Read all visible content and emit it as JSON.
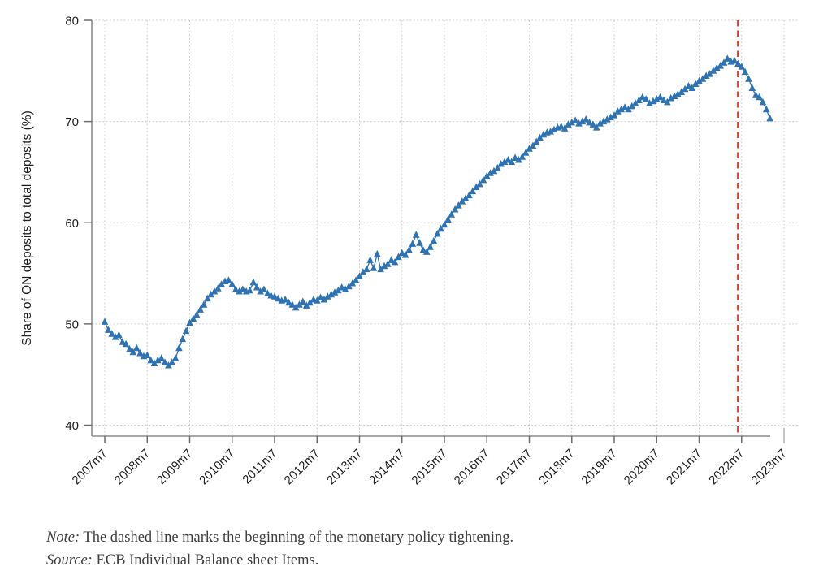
{
  "chart_data": {
    "type": "scatter",
    "marker": "triangle-up",
    "title": "",
    "xlabel": "",
    "ylabel": "Share of ON deposits to total deposits (%)",
    "ylim": [
      40,
      80
    ],
    "y_ticks": [
      40,
      50,
      60,
      70,
      80
    ],
    "x_start": "2007m7",
    "x_end": "2023m3",
    "x_frequency": "monthly",
    "x_tick_labels": [
      "2007m7",
      "2008m7",
      "2009m7",
      "2010m7",
      "2011m7",
      "2012m7",
      "2013m7",
      "2014m7",
      "2015m7",
      "2016m7",
      "2017m7",
      "2018m7",
      "2019m7",
      "2020m7",
      "2021m7",
      "2022m7",
      "2023m7"
    ],
    "grid": "dotted",
    "legend_position": "none",
    "series": [
      {
        "name": "Share of ON deposits to total deposits (%)",
        "color": "#2e73b3",
        "values": [
          50.2,
          49.4,
          49.0,
          48.7,
          48.9,
          48.2,
          48.0,
          47.5,
          47.2,
          47.6,
          47.1,
          46.8,
          46.9,
          46.4,
          46.1,
          46.4,
          46.6,
          46.2,
          45.9,
          46.2,
          46.6,
          47.6,
          48.5,
          49.3,
          50.1,
          50.5,
          50.9,
          51.4,
          51.9,
          52.5,
          52.9,
          53.2,
          53.5,
          53.9,
          54.2,
          54.3,
          53.9,
          53.4,
          53.2,
          53.4,
          53.2,
          53.3,
          54.1,
          53.6,
          53.2,
          53.4,
          53.0,
          52.8,
          52.7,
          52.5,
          52.3,
          52.4,
          52.1,
          51.9,
          51.6,
          51.9,
          52.2,
          51.8,
          52.1,
          52.4,
          52.3,
          52.6,
          52.4,
          52.7,
          52.9,
          53.1,
          53.3,
          53.6,
          53.4,
          53.7,
          54.0,
          54.3,
          54.7,
          55.1,
          55.4,
          56.3,
          55.5,
          56.9,
          55.4,
          55.7,
          55.9,
          56.3,
          56.1,
          56.6,
          57.0,
          56.8,
          57.3,
          57.9,
          58.8,
          58.0,
          57.3,
          57.1,
          57.6,
          58.2,
          58.9,
          59.4,
          59.8,
          60.3,
          60.8,
          61.3,
          61.7,
          62.1,
          62.4,
          62.7,
          63.1,
          63.5,
          63.8,
          64.2,
          64.6,
          64.9,
          65.1,
          65.4,
          65.8,
          66.0,
          66.2,
          66.0,
          66.4,
          66.2,
          66.5,
          66.9,
          67.3,
          67.6,
          68.0,
          68.4,
          68.7,
          68.9,
          69.0,
          69.2,
          69.4,
          69.5,
          69.3,
          69.7,
          69.9,
          70.1,
          69.8,
          70.0,
          70.2,
          69.9,
          69.7,
          69.4,
          69.8,
          70.0,
          70.2,
          70.4,
          70.6,
          71.0,
          71.2,
          71.4,
          71.2,
          71.5,
          71.8,
          72.1,
          72.4,
          72.2,
          71.8,
          72.0,
          72.2,
          72.4,
          72.1,
          71.9,
          72.3,
          72.5,
          72.7,
          72.9,
          73.2,
          73.5,
          73.3,
          73.7,
          74.0,
          74.2,
          74.5,
          74.7,
          75.0,
          75.3,
          75.5,
          75.8,
          76.2,
          75.9,
          76.0,
          75.7,
          75.4,
          74.9,
          74.2,
          73.3,
          72.6,
          72.4,
          71.9,
          71.2,
          70.3
        ]
      }
    ],
    "reference_line": {
      "orientation": "vertical",
      "x": "2022m6",
      "style": "dashed",
      "color": "#e23b36",
      "meaning": "beginning of the monetary policy tightening"
    }
  },
  "notes": {
    "note_label": "Note:",
    "note_text": "The dashed line marks the beginning of the monetary policy tightening.",
    "source_label": "Source:",
    "source_text": "ECB Individual Balance sheet Items."
  },
  "colors": {
    "marker": "#2e73b3",
    "reference_line": "#e23b36",
    "axis": "#8c8c8c",
    "tick": "#6e6e6e",
    "light_tick": "#b3b3b3",
    "grid": "#c9c9c9",
    "text": "#1f1f1f",
    "note_text": "#3f3f3f"
  }
}
